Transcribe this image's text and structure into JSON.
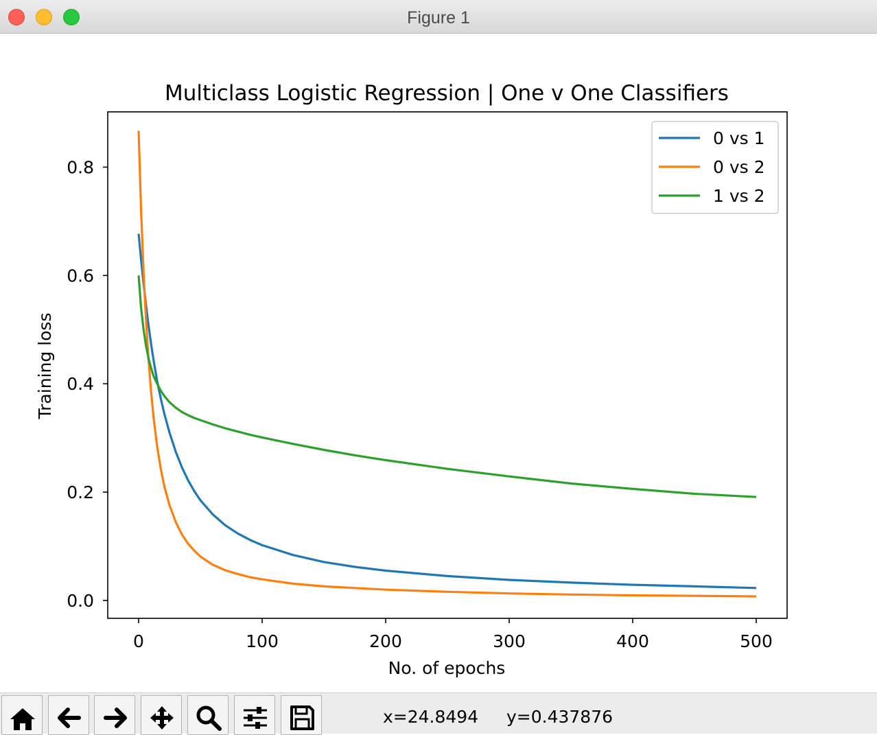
{
  "window": {
    "title": "Figure 1"
  },
  "toolbar": {
    "buttons": [
      {
        "name": "home-button",
        "icon": "home-icon"
      },
      {
        "name": "back-button",
        "icon": "arrow-left-icon"
      },
      {
        "name": "forward-button",
        "icon": "arrow-right-icon"
      },
      {
        "name": "pan-button",
        "icon": "move-icon"
      },
      {
        "name": "zoom-button",
        "icon": "magnifier-icon"
      },
      {
        "name": "subplots-button",
        "icon": "sliders-icon"
      },
      {
        "name": "save-button",
        "icon": "floppy-disk-icon"
      }
    ],
    "coord_x": "x=24.8494",
    "coord_y": "y=0.437876"
  },
  "chart_data": {
    "type": "line",
    "title": "Multiclass Logistic Regression | One v One Classifiers",
    "xlabel": "No. of epochs",
    "ylabel": "Training loss",
    "xlim": [
      -25,
      525
    ],
    "ylim": [
      -0.033,
      0.902
    ],
    "xticks": [
      0,
      100,
      200,
      300,
      400,
      500
    ],
    "xtick_labels": [
      "0",
      "100",
      "200",
      "300",
      "400",
      "500"
    ],
    "yticks": [
      0.0,
      0.2,
      0.4,
      0.6,
      0.8
    ],
    "ytick_labels": [
      "0.0",
      "0.2",
      "0.4",
      "0.6",
      "0.8"
    ],
    "grid": false,
    "legend": "upper right",
    "x": [
      0,
      2,
      4,
      6,
      8,
      10,
      12,
      15,
      18,
      21,
      25,
      30,
      35,
      40,
      45,
      50,
      60,
      70,
      80,
      90,
      100,
      125,
      150,
      175,
      200,
      250,
      300,
      350,
      400,
      450,
      500
    ],
    "series": [
      {
        "name": "0 vs 1",
        "color": "#1f77b4",
        "values": [
          0.677,
          0.629,
          0.585,
          0.545,
          0.508,
          0.475,
          0.445,
          0.405,
          0.372,
          0.343,
          0.31,
          0.275,
          0.246,
          0.222,
          0.202,
          0.185,
          0.159,
          0.139,
          0.124,
          0.112,
          0.102,
          0.084,
          0.071,
          0.062,
          0.055,
          0.045,
          0.038,
          0.033,
          0.029,
          0.026,
          0.023
        ]
      },
      {
        "name": "0 vs 2",
        "color": "#ff7f0e",
        "values": [
          0.867,
          0.72,
          0.606,
          0.517,
          0.445,
          0.388,
          0.34,
          0.284,
          0.242,
          0.209,
          0.176,
          0.145,
          0.122,
          0.105,
          0.092,
          0.081,
          0.066,
          0.056,
          0.049,
          0.043,
          0.039,
          0.031,
          0.026,
          0.023,
          0.02,
          0.016,
          0.013,
          0.011,
          0.0095,
          0.0085,
          0.0075
        ]
      },
      {
        "name": "1 vs 2",
        "color": "#2ca02c",
        "values": [
          0.6,
          0.54,
          0.5,
          0.47,
          0.447,
          0.43,
          0.415,
          0.4,
          0.387,
          0.377,
          0.366,
          0.356,
          0.348,
          0.342,
          0.337,
          0.333,
          0.325,
          0.318,
          0.312,
          0.306,
          0.301,
          0.289,
          0.278,
          0.268,
          0.259,
          0.243,
          0.229,
          0.216,
          0.206,
          0.197,
          0.191
        ]
      }
    ]
  }
}
